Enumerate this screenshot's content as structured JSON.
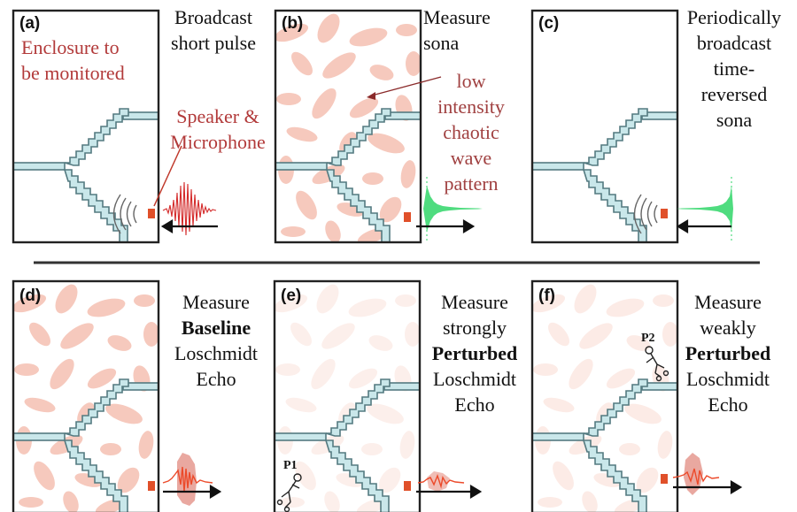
{
  "panels": {
    "a": {
      "label": "(a)",
      "lines": [
        "Broadcast",
        "short pulse"
      ],
      "enclosure_lines": [
        "Enclosure to",
        "be monitored"
      ],
      "device_lines": [
        "Speaker &",
        "Microphone"
      ]
    },
    "b": {
      "label": "(b)",
      "lines": [
        "Measure",
        "sona"
      ],
      "wave_lines": [
        "low",
        "intensity",
        "chaotic",
        "wave",
        "pattern"
      ]
    },
    "c": {
      "label": "(c)",
      "lines": [
        "Periodically",
        "broadcast",
        "time-",
        "reversed",
        "sona"
      ]
    },
    "d": {
      "label": "(d)",
      "lines": [
        "Measure",
        "Baseline",
        "Loschmidt",
        "Echo"
      ]
    },
    "e": {
      "label": "(e)",
      "lines": [
        "Measure",
        "strongly",
        "Perturbed",
        "Loschmidt",
        "Echo"
      ],
      "person": "P1"
    },
    "f": {
      "label": "(f)",
      "lines": [
        "Measure",
        "weakly",
        "Perturbed",
        "Loschmidt",
        "Echo"
      ],
      "person": "P2"
    }
  },
  "colors": {
    "blob_strong": "#f6c9bd",
    "blob_faint": "#fbe3dc",
    "pulse_red": "#d42a2a",
    "sona_green": "#4fdc7f",
    "echo_red": "#ec4a2a",
    "echo_shadow": "#e9a8a0",
    "stair_fill": "#c9e7ea",
    "stair_stroke": "#547a80",
    "device": "#e0502a"
  }
}
